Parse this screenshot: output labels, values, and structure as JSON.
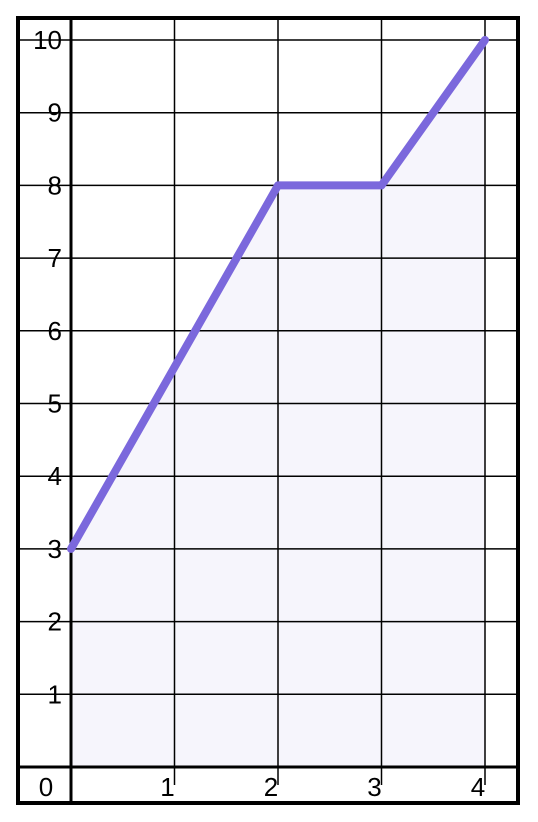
{
  "chart_data": {
    "type": "area",
    "title": "",
    "xlabel": "",
    "ylabel": "",
    "x": [
      0,
      1,
      2,
      3,
      4
    ],
    "series": [
      {
        "values": [
          3,
          5.5,
          8,
          8,
          10
        ]
      }
    ],
    "xlim": [
      0,
      4
    ],
    "ylim": [
      0,
      10
    ],
    "x_ticks": [
      "0",
      "1",
      "2",
      "3",
      "4"
    ],
    "y_ticks": [
      "1",
      "2",
      "3",
      "4",
      "5",
      "6",
      "7",
      "8",
      "9",
      "10"
    ],
    "grid": true,
    "colors": {
      "line": "#7b68dc",
      "fill": "#f4f3fc",
      "grid": "#000000",
      "frame": "#000000"
    }
  }
}
